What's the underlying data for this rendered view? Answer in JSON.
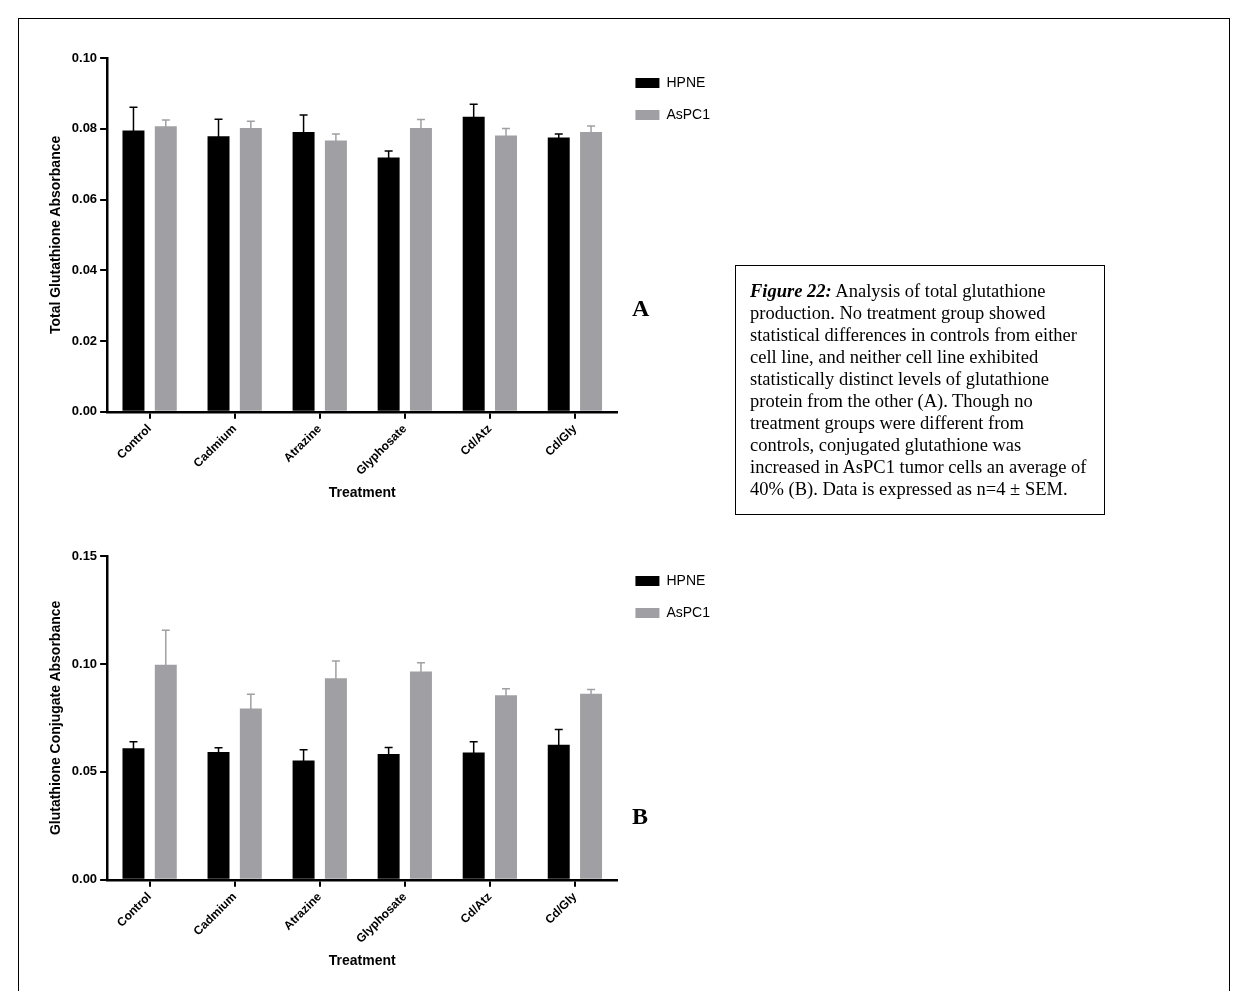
{
  "chart_data": [
    {
      "type": "bar",
      "ylabel": "Total Glutathione Absorbance",
      "xlabel": "Treatment",
      "categories": [
        "Control",
        "Cadmium",
        "Atrazine",
        "Glyphosate",
        "Cd/Atz",
        "Cd/Gly"
      ],
      "series": [
        {
          "name": "HPNE",
          "color": "#000000",
          "values": [
            0.0795,
            0.0779,
            0.0791,
            0.0719,
            0.0834,
            0.0775
          ],
          "errors": [
            0.0066,
            0.0048,
            0.0048,
            0.0018,
            0.0035,
            0.001
          ]
        },
        {
          "name": "AsPC1",
          "color": "#a0a0a4",
          "values": [
            0.0807,
            0.0802,
            0.0767,
            0.0802,
            0.0781,
            0.0791
          ],
          "errors": [
            0.0018,
            0.0019,
            0.0018,
            0.0024,
            0.002,
            0.0017
          ]
        }
      ],
      "ylim": [
        0,
        0.1
      ],
      "yticks": [
        {
          "value": 0,
          "label": "0.00"
        },
        {
          "value": 0.02,
          "label": "0.02"
        },
        {
          "value": 0.04,
          "label": "0.04"
        },
        {
          "value": 0.06,
          "label": "0.06"
        },
        {
          "value": 0.08,
          "label": "0.08"
        },
        {
          "value": 0.1,
          "label": "0.10"
        }
      ],
      "grid": false,
      "legend": "top right",
      "annotations": [
        "A"
      ]
    },
    {
      "type": "bar",
      "ylabel": "Glutathione Conjugate Absorbance",
      "xlabel": "Treatment",
      "categories": [
        "Control",
        "Cadmium",
        "Atrazine",
        "Glyphosate",
        "Cd/Atz",
        "Cd/Gly"
      ],
      "series": [
        {
          "name": "HPNE",
          "color": "#000000",
          "values": [
            0.061,
            0.0592,
            0.0553,
            0.0583,
            0.059,
            0.0626
          ],
          "errors": [
            0.003,
            0.002,
            0.005,
            0.003,
            0.005,
            0.007
          ]
        },
        {
          "name": "AsPC1",
          "color": "#a0a0a4",
          "values": [
            0.0996,
            0.0793,
            0.0934,
            0.0965,
            0.0855,
            0.0862
          ],
          "errors": [
            0.016,
            0.0066,
            0.008,
            0.004,
            0.003,
            0.002
          ]
        }
      ],
      "ylim": [
        0,
        0.15
      ],
      "yticks": [
        {
          "value": 0,
          "label": "0.00"
        },
        {
          "value": 0.05,
          "label": "0.05"
        },
        {
          "value": 0.1,
          "label": "0.10"
        },
        {
          "value": 0.15,
          "label": "0.15"
        }
      ],
      "grid": false,
      "legend": "top right",
      "annotations": [
        "B"
      ]
    },
    {
      "type": "other",
      "annotations": [
        "Figure 22:",
        "Analysis of total glutathione production.  No treatment group showed statistical differences in controls from either cell line, and neither cell line exhibited statistically distinct levels of glutathione protein from the other (A).  Though no treatment groups were different from controls, conjugated glutathione was increased in AsPC1 tumor cells an average of 40% (B). Data is expressed as n=4 ± SEM."
      ]
    }
  ]
}
